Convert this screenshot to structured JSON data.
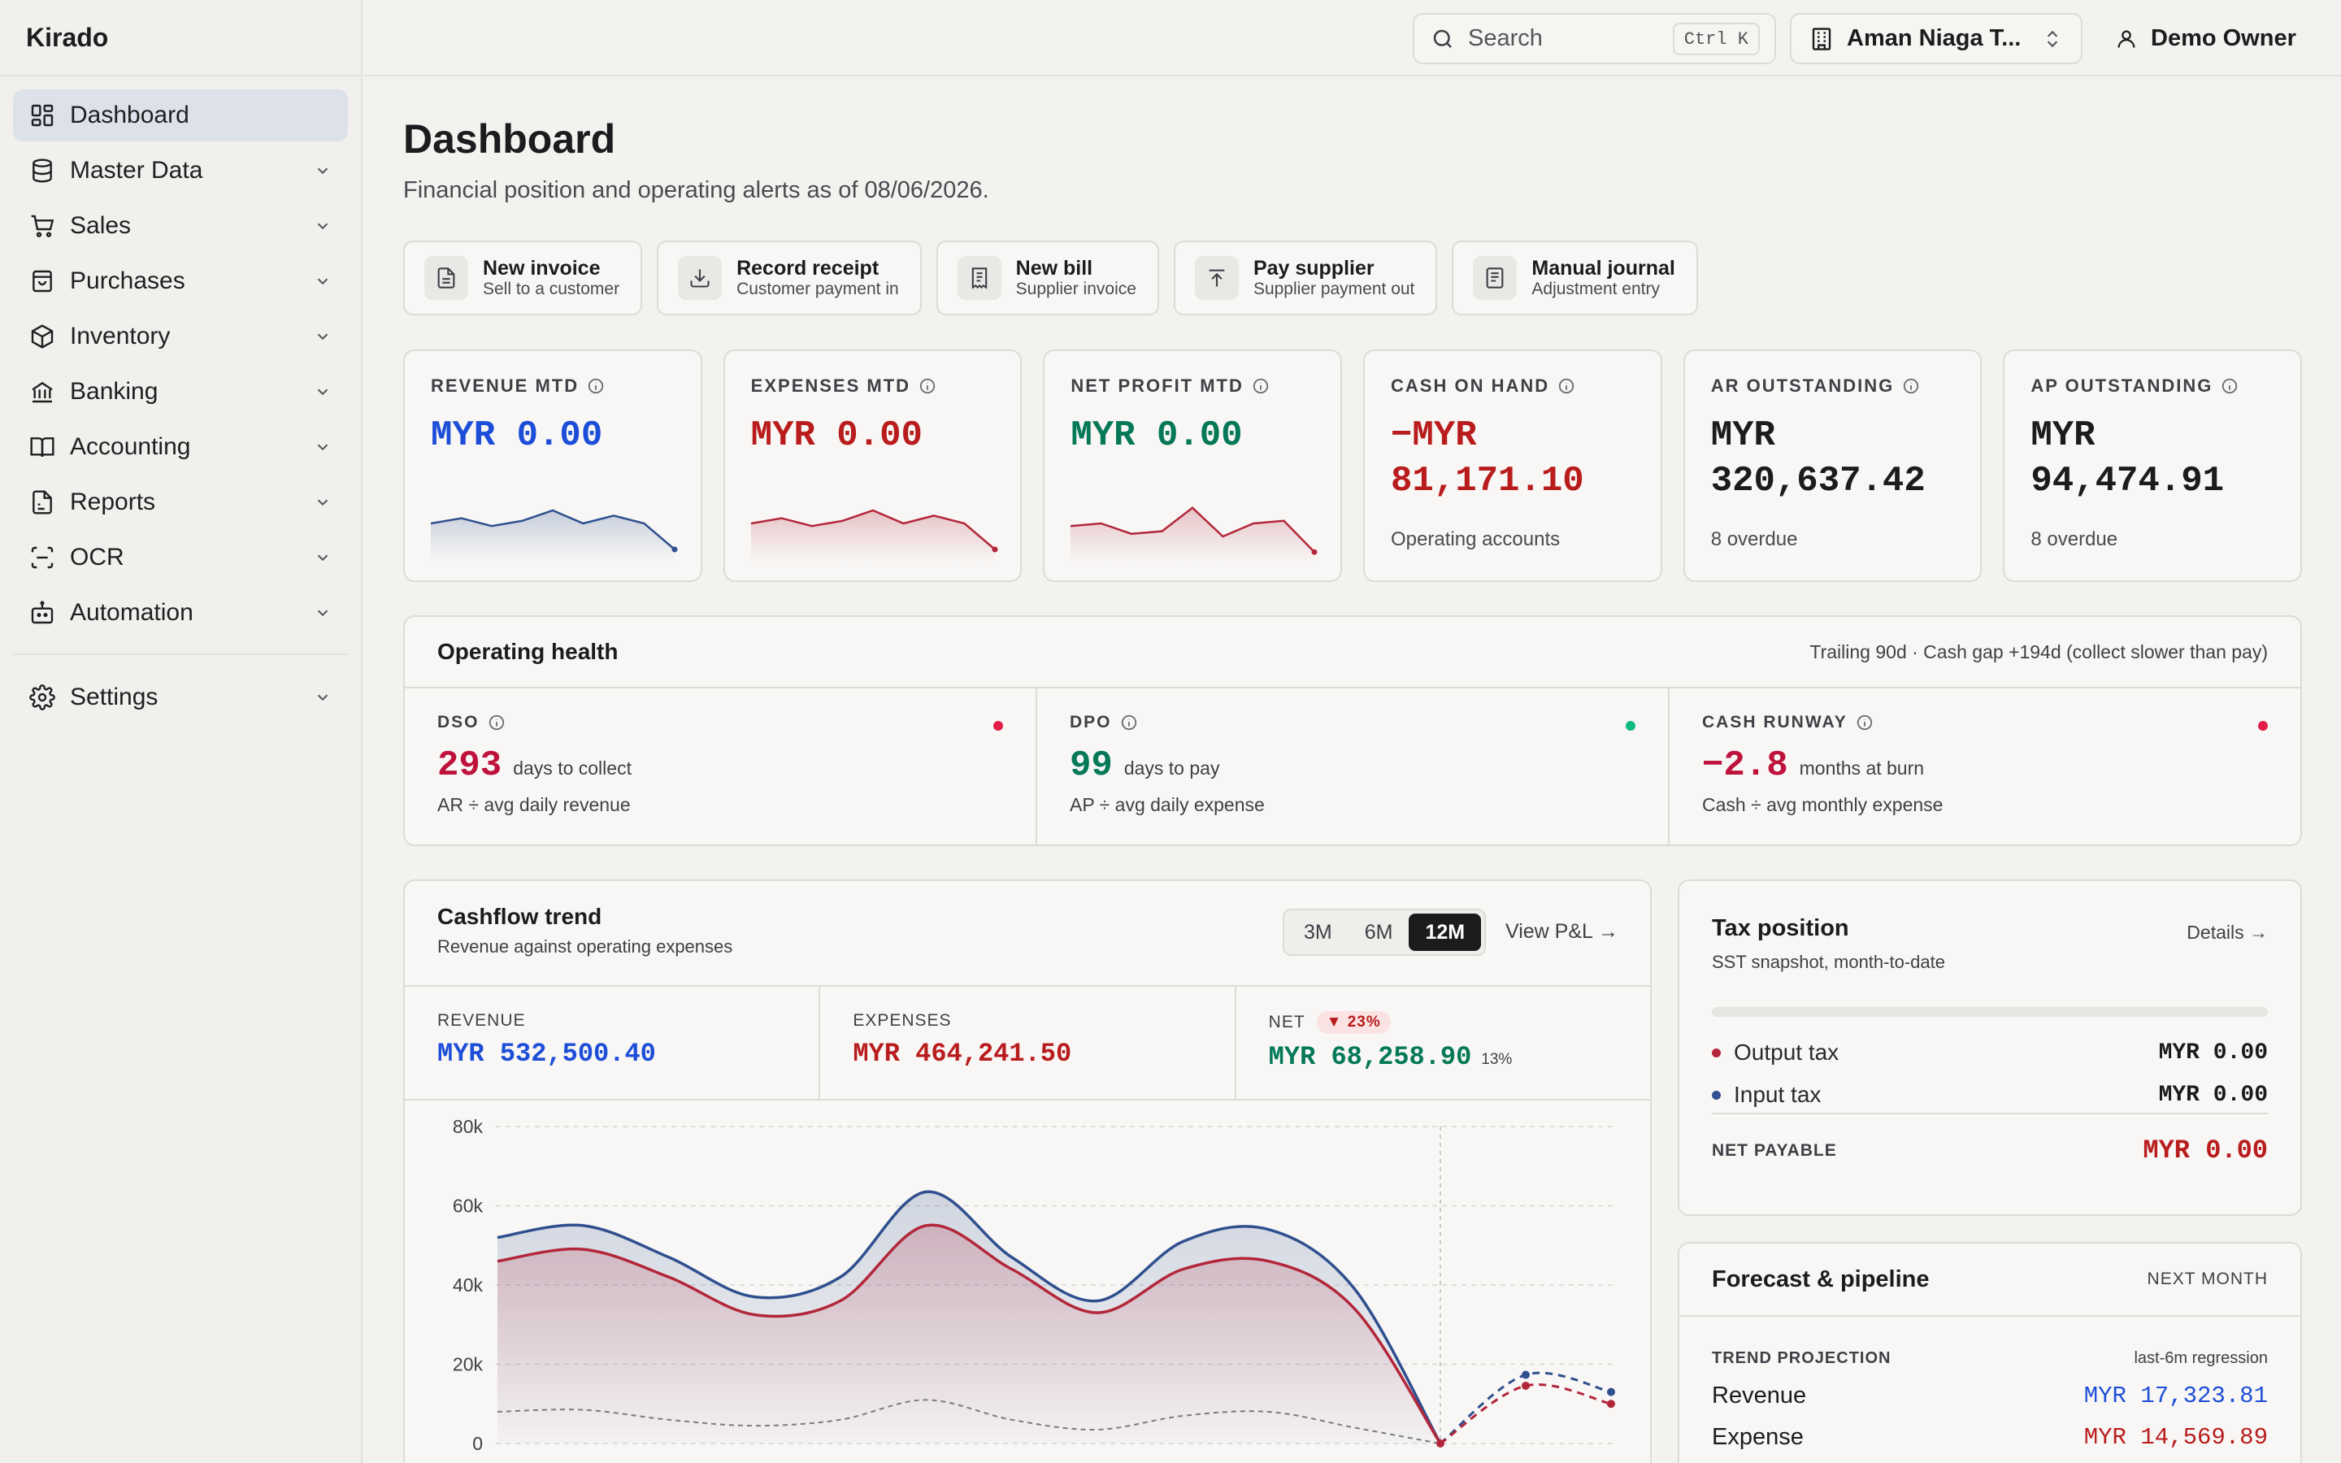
{
  "app": {
    "brand": "Kirado"
  },
  "sidebar": {
    "items": [
      {
        "label": "Dashboard",
        "icon": "dashboard-icon"
      },
      {
        "label": "Master Data",
        "icon": "database-icon"
      },
      {
        "label": "Sales",
        "icon": "cart-icon"
      },
      {
        "label": "Purchases",
        "icon": "bag-icon"
      },
      {
        "label": "Inventory",
        "icon": "box-icon"
      },
      {
        "label": "Banking",
        "icon": "bank-icon"
      },
      {
        "label": "Accounting",
        "icon": "book-icon"
      },
      {
        "label": "Reports",
        "icon": "report-icon"
      },
      {
        "label": "OCR",
        "icon": "scan-icon"
      },
      {
        "label": "Automation",
        "icon": "bot-icon"
      }
    ],
    "settings": {
      "label": "Settings",
      "icon": "gear-icon"
    }
  },
  "topbar": {
    "search_placeholder": "Search",
    "search_shortcut": "Ctrl K",
    "company": "Aman Niaga T...",
    "user": "Demo Owner"
  },
  "page": {
    "title": "Dashboard",
    "subtitle": "Financial position and operating alerts as of 08/06/2026."
  },
  "actions": [
    {
      "title": "New invoice",
      "sub": "Sell to a customer",
      "icon": "file-icon"
    },
    {
      "title": "Record receipt",
      "sub": "Customer payment in",
      "icon": "download-icon"
    },
    {
      "title": "New bill",
      "sub": "Supplier invoice",
      "icon": "receipt-icon"
    },
    {
      "title": "Pay supplier",
      "sub": "Supplier payment out",
      "icon": "upload-icon"
    },
    {
      "title": "Manual journal",
      "sub": "Adjustment entry",
      "icon": "journal-icon"
    }
  ],
  "kpis": [
    {
      "label": "REVENUE MTD",
      "value": "MYR 0.00",
      "color": "#1d4ed8",
      "spark": [
        30,
        34,
        28,
        32,
        40,
        30,
        36,
        30,
        10
      ],
      "spark_color": "#2f4f8f"
    },
    {
      "label": "EXPENSES MTD",
      "value": "MYR 0.00",
      "color": "#b91c1c",
      "spark": [
        30,
        34,
        28,
        32,
        40,
        30,
        36,
        30,
        10
      ],
      "spark_color": "#b3263a"
    },
    {
      "label": "NET PROFIT MTD",
      "value": "MYR 0.00",
      "color": "#047857",
      "spark": [
        28,
        30,
        22,
        24,
        42,
        20,
        30,
        32,
        8
      ],
      "spark_color": "#b3263a"
    },
    {
      "label": "CASH ON HAND",
      "value": "−MYR 81,171.10",
      "color": "#b91c1c",
      "note": "Operating accounts"
    },
    {
      "label": "AR OUTSTANDING",
      "value": "MYR 320,637.42",
      "color": "#1c1c1e",
      "note": "8 overdue"
    },
    {
      "label": "AP OUTSTANDING",
      "value": "MYR 94,474.91",
      "color": "#1c1c1e",
      "note": "8 overdue"
    }
  ],
  "health": {
    "title": "Operating health",
    "note": "Trailing 90d · Cash gap +194d (collect slower than pay)",
    "cells": [
      {
        "label": "DSO",
        "value": "293",
        "unit": "days to collect",
        "desc": "AR ÷ avg daily revenue",
        "color": "#be123c",
        "dot": "#e11d48"
      },
      {
        "label": "DPO",
        "value": "99",
        "unit": "days to pay",
        "desc": "AP ÷ avg daily expense",
        "color": "#047857",
        "dot": "#10b981"
      },
      {
        "label": "CASH RUNWAY",
        "value": "−2.8",
        "unit": "months at burn",
        "desc": "Cash ÷ avg monthly expense",
        "color": "#be123c",
        "dot": "#e11d48"
      }
    ]
  },
  "cashflow": {
    "title": "Cashflow trend",
    "subtitle": "Revenue against operating expenses",
    "ranges": [
      "3M",
      "6M",
      "12M"
    ],
    "active_range": "12M",
    "view_link": "View P&L →",
    "revenue_label": "REVENUE",
    "revenue_value": "MYR 532,500.40",
    "expenses_label": "EXPENSES",
    "expenses_value": "MYR 464,241.50",
    "net_label": "NET",
    "net_badge": "▼ 23%",
    "net_value": "MYR 68,258.90",
    "net_pct": "13%",
    "colors": {
      "revenue": "#2f4f8f",
      "expense": "#b3263a",
      "net": "#7a7a80"
    }
  },
  "chart_data": {
    "type": "line",
    "yticks": [
      "80k",
      "60k",
      "40k",
      "20k",
      "0"
    ],
    "ylim": [
      0,
      80000
    ],
    "series": [
      {
        "name": "Revenue",
        "values": [
          52000,
          55000,
          47000,
          37000,
          42000,
          63500,
          47000,
          36000,
          51000,
          54000,
          39000,
          0
        ],
        "forecast": [
          17323.81,
          13000
        ]
      },
      {
        "name": "Expense",
        "values": [
          46000,
          49000,
          42000,
          32500,
          36000,
          55000,
          44000,
          33000,
          44000,
          46000,
          34000,
          0
        ],
        "forecast": [
          14569.89,
          10000
        ]
      },
      {
        "name": "Net",
        "values": [
          8000,
          8500,
          6000,
          4500,
          6000,
          11000,
          6000,
          3500,
          7000,
          8000,
          4000,
          0
        ]
      }
    ]
  },
  "tax": {
    "title": "Tax position",
    "subtitle": "SST snapshot, month-to-date",
    "link": "Details →",
    "rows": [
      {
        "label": "Output tax",
        "value": "MYR 0.00",
        "color": "#b3263a"
      },
      {
        "label": "Input tax",
        "value": "MYR 0.00",
        "color": "#2f4f8f"
      }
    ],
    "net_label": "NET PAYABLE",
    "net_value": "MYR 0.00"
  },
  "forecast": {
    "title": "Forecast & pipeline",
    "tag": "NEXT MONTH",
    "section": "TREND PROJECTION",
    "section_note": "last-6m regression",
    "rows": [
      {
        "label": "Revenue",
        "value": "MYR 17,323.81",
        "color": "#1d4ed8"
      },
      {
        "label": "Expense",
        "value": "MYR 14,569.89",
        "color": "#b91c1c"
      }
    ]
  }
}
